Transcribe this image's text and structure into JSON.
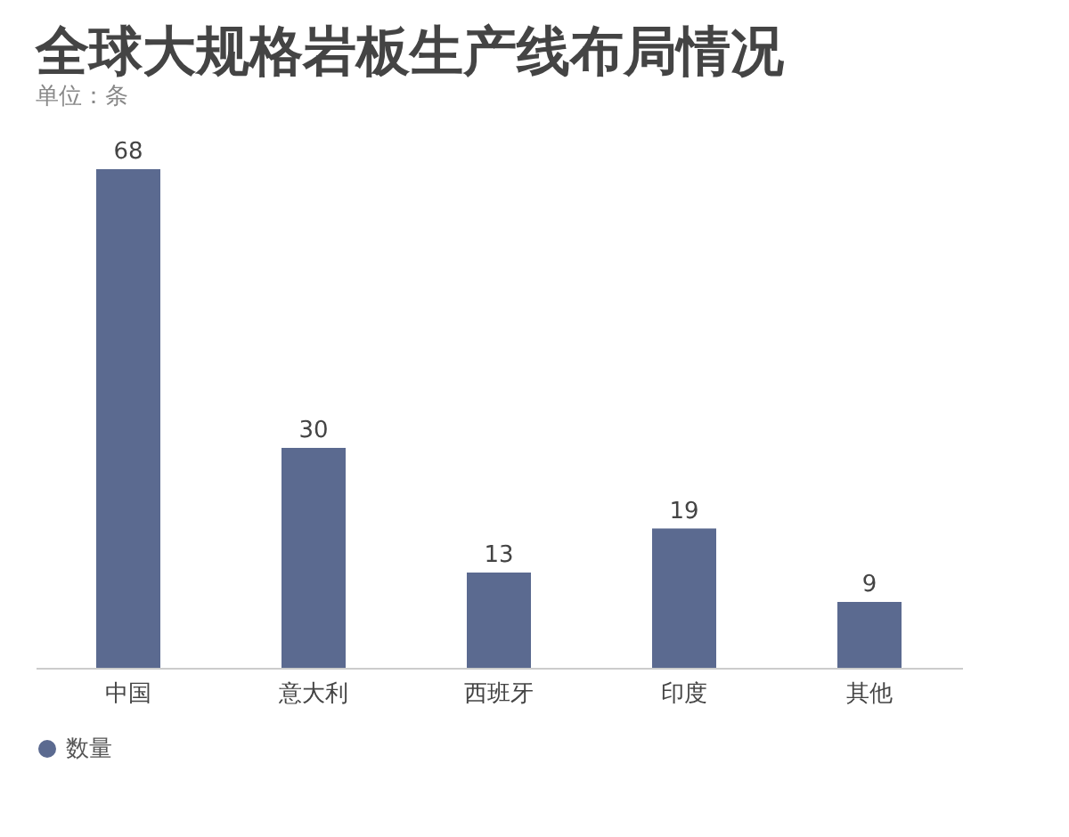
{
  "chart_data": {
    "type": "bar",
    "title": "全球大规格岩板生产线布局情况",
    "subtitle": "单位：条",
    "categories": [
      "中国",
      "意大利",
      "西班牙",
      "印度",
      "其他"
    ],
    "series": [
      {
        "name": "数量",
        "color": "#5b6a90",
        "values": [
          68,
          30,
          13,
          19,
          9
        ]
      }
    ],
    "data_labels": true,
    "legend": "bottom"
  }
}
